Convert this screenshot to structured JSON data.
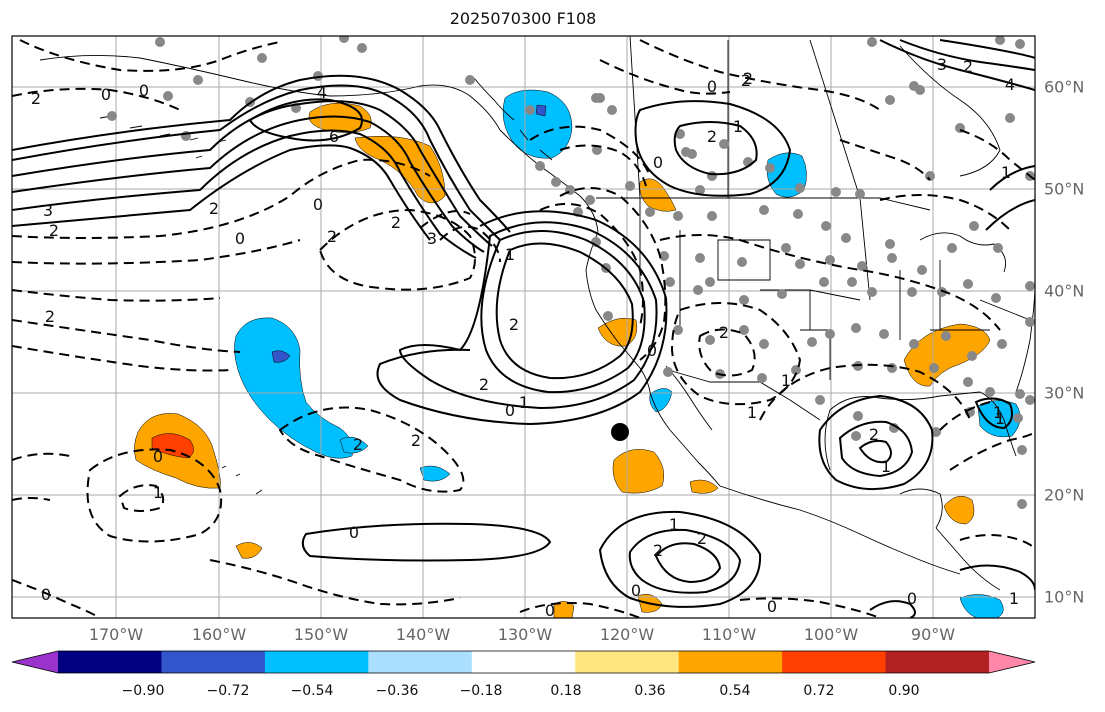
{
  "title": "2025070300 F108",
  "longitude_labels": [
    "170°W",
    "160°W",
    "150°W",
    "140°W",
    "130°W",
    "120°W",
    "110°W",
    "100°W",
    "90°W"
  ],
  "latitude_labels": [
    "60°N",
    "50°N",
    "40°N",
    "30°N",
    "20°N",
    "10°N"
  ],
  "colorbar": {
    "ticks": [
      "−0.90",
      "−0.72",
      "−0.54",
      "−0.36",
      "−0.18",
      "0.18",
      "0.36",
      "0.54",
      "0.72",
      "0.90"
    ],
    "colors": [
      "#9933cc",
      "#000080",
      "#3355cc",
      "#00bfff",
      "#aadfff",
      "#ffffff",
      "#ffe680",
      "#ffa500",
      "#ff4000",
      "#b22222",
      "#ff88aa"
    ]
  },
  "contour_labels": {
    "positive": [
      "4",
      "6",
      "2",
      "3",
      "2",
      "2",
      "1",
      "2",
      "1",
      "2",
      "1",
      "3",
      "4",
      "2",
      "1",
      "2",
      "1",
      "2",
      "1",
      "1"
    ],
    "zero": [
      "0",
      "0",
      "0",
      "0",
      "0",
      "0",
      "0",
      "0",
      "0",
      "0",
      "0",
      "0",
      "0",
      "0",
      "0"
    ],
    "negative": [
      "2",
      "2",
      "2",
      "2",
      "3",
      "2",
      "2",
      "2",
      "1",
      "1",
      "2",
      "2",
      "1",
      "1",
      "2",
      "1"
    ]
  },
  "colors": {
    "grid": "#aaaaaa",
    "contour": "#000000",
    "station_dot": "#888888",
    "text": "#111111",
    "axis_label": "#666666"
  }
}
